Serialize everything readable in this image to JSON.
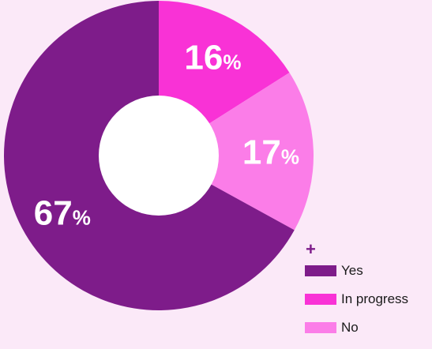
{
  "chart_data": {
    "type": "pie",
    "donut": true,
    "title": "",
    "categories": [
      "In progress",
      "No",
      "Yes"
    ],
    "values": [
      16,
      17,
      67
    ],
    "unit": "%",
    "colors": {
      "In progress": "#f932d6",
      "No": "#fb7de8",
      "Yes": "#7e1c8a"
    },
    "legend_position": "bottom-right",
    "legend": [
      "Yes",
      "In progress",
      "No"
    ],
    "legend_marker": "+"
  },
  "background": "#fbe9f8"
}
